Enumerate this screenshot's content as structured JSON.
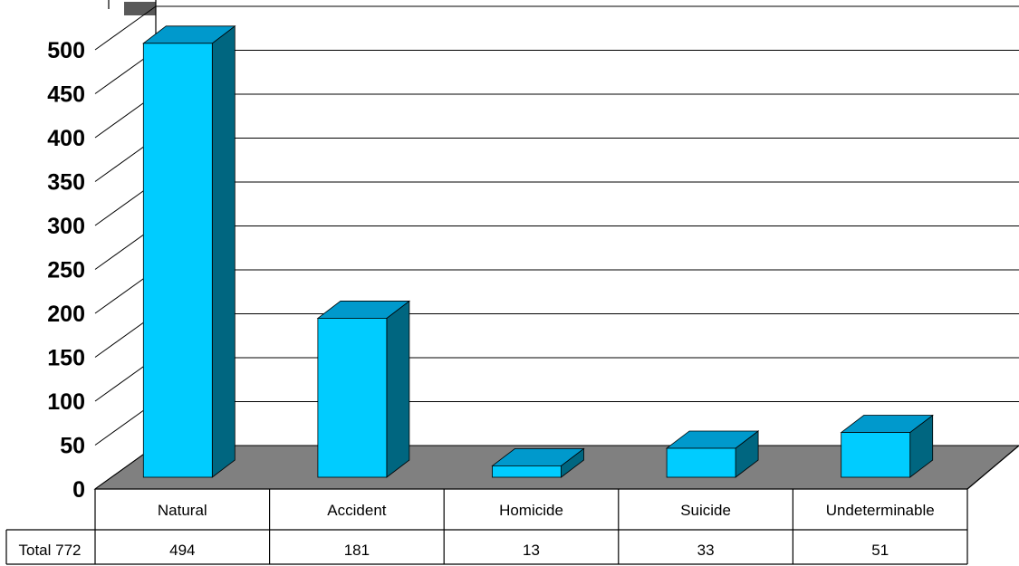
{
  "chart_data": {
    "type": "bar",
    "title": "",
    "xlabel": "",
    "ylabel": "",
    "categories": [
      "Natural",
      "Accident",
      "Homicide",
      "Suicide",
      "Undeterminable"
    ],
    "values": [
      494,
      181,
      13,
      33,
      51
    ],
    "ylim": [
      0,
      500
    ],
    "yticks": [
      0,
      50,
      100,
      150,
      200,
      250,
      300,
      350,
      400,
      450,
      500
    ],
    "grid": true,
    "total_label": "Total 772",
    "colors": {
      "bar_front": "#00ccff",
      "bar_top": "#0099cc",
      "bar_side": "#006680",
      "floor": "#808080",
      "grid": "#000000"
    }
  }
}
